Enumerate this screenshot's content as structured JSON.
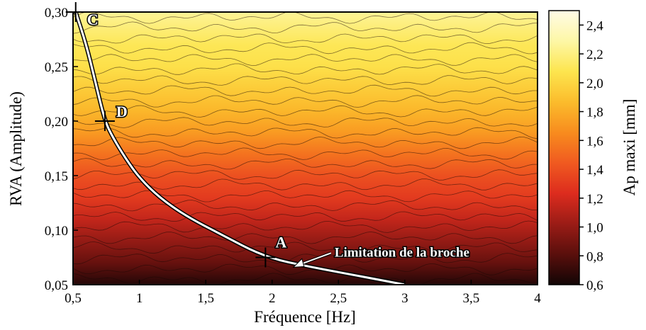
{
  "chart_data": {
    "type": "heatmap",
    "title": "",
    "xlabel": "Fréquence [Hz]",
    "ylabel": "RVA (Amplitude)",
    "xlim": [
      0.5,
      4
    ],
    "ylim": [
      0.05,
      0.3
    ],
    "x_ticks": [
      0.5,
      1,
      1.5,
      2,
      2.5,
      3,
      3.5,
      4
    ],
    "x_tick_labels": [
      "0,5",
      "1",
      "1,5",
      "2",
      "2,5",
      "3",
      "3,5",
      "4"
    ],
    "y_ticks": [
      0.05,
      0.1,
      0.15,
      0.2,
      0.25,
      0.3
    ],
    "y_tick_labels": [
      "0,05",
      "0,10",
      "0,15",
      "0,20",
      "0,25",
      "0,30"
    ],
    "colorbar": {
      "label": "Ap maxi [mm]",
      "range": [
        0.6,
        2.5
      ],
      "ticks": [
        0.6,
        0.8,
        1.0,
        1.2,
        1.4,
        1.6,
        1.8,
        2.0,
        2.2,
        2.4
      ],
      "tick_labels": [
        "0,6",
        "0,8",
        "1,0",
        "1,2",
        "1,4",
        "1,6",
        "1,8",
        "2,0",
        "2,2",
        "2,4"
      ],
      "colors": [
        "#120505",
        "#5a0f0c",
        "#9b1c16",
        "#dd2c1e",
        "#f05a20",
        "#f88c1e",
        "#fbbc2c",
        "#fde54e",
        "#fdf7a6",
        "#fffbe6"
      ]
    },
    "ap_by_rva": [
      {
        "rva": 0.05,
        "ap": 0.65
      },
      {
        "rva": 0.07,
        "ap": 0.85
      },
      {
        "rva": 0.09,
        "ap": 1.0
      },
      {
        "rva": 0.11,
        "ap": 1.15
      },
      {
        "rva": 0.13,
        "ap": 1.3
      },
      {
        "rva": 0.15,
        "ap": 1.4
      },
      {
        "rva": 0.17,
        "ap": 1.55
      },
      {
        "rva": 0.19,
        "ap": 1.72
      },
      {
        "rva": 0.21,
        "ap": 1.85
      },
      {
        "rva": 0.23,
        "ap": 1.95
      },
      {
        "rva": 0.25,
        "ap": 2.05
      },
      {
        "rva": 0.27,
        "ap": 2.1
      },
      {
        "rva": 0.29,
        "ap": 2.2
      },
      {
        "rva": 0.3,
        "ap": 2.25
      }
    ],
    "limit_curve": {
      "label": "Limitation de la broche",
      "points": [
        {
          "x": 0.52,
          "y": 0.3
        },
        {
          "x": 0.6,
          "y": 0.27
        },
        {
          "x": 0.67,
          "y": 0.235
        },
        {
          "x": 0.74,
          "y": 0.2
        },
        {
          "x": 0.8,
          "y": 0.185
        },
        {
          "x": 0.9,
          "y": 0.165
        },
        {
          "x": 1.0,
          "y": 0.148
        },
        {
          "x": 1.15,
          "y": 0.13
        },
        {
          "x": 1.35,
          "y": 0.113
        },
        {
          "x": 1.6,
          "y": 0.097
        },
        {
          "x": 1.95,
          "y": 0.075
        },
        {
          "x": 2.3,
          "y": 0.066
        },
        {
          "x": 2.7,
          "y": 0.057
        },
        {
          "x": 3.0,
          "y": 0.05
        }
      ]
    },
    "labeled_points": [
      {
        "label": "A",
        "x": 1.95,
        "y": 0.075
      },
      {
        "label": "C",
        "x": 0.52,
        "y": 0.3
      },
      {
        "label": "D",
        "x": 0.74,
        "y": 0.2
      }
    ]
  }
}
